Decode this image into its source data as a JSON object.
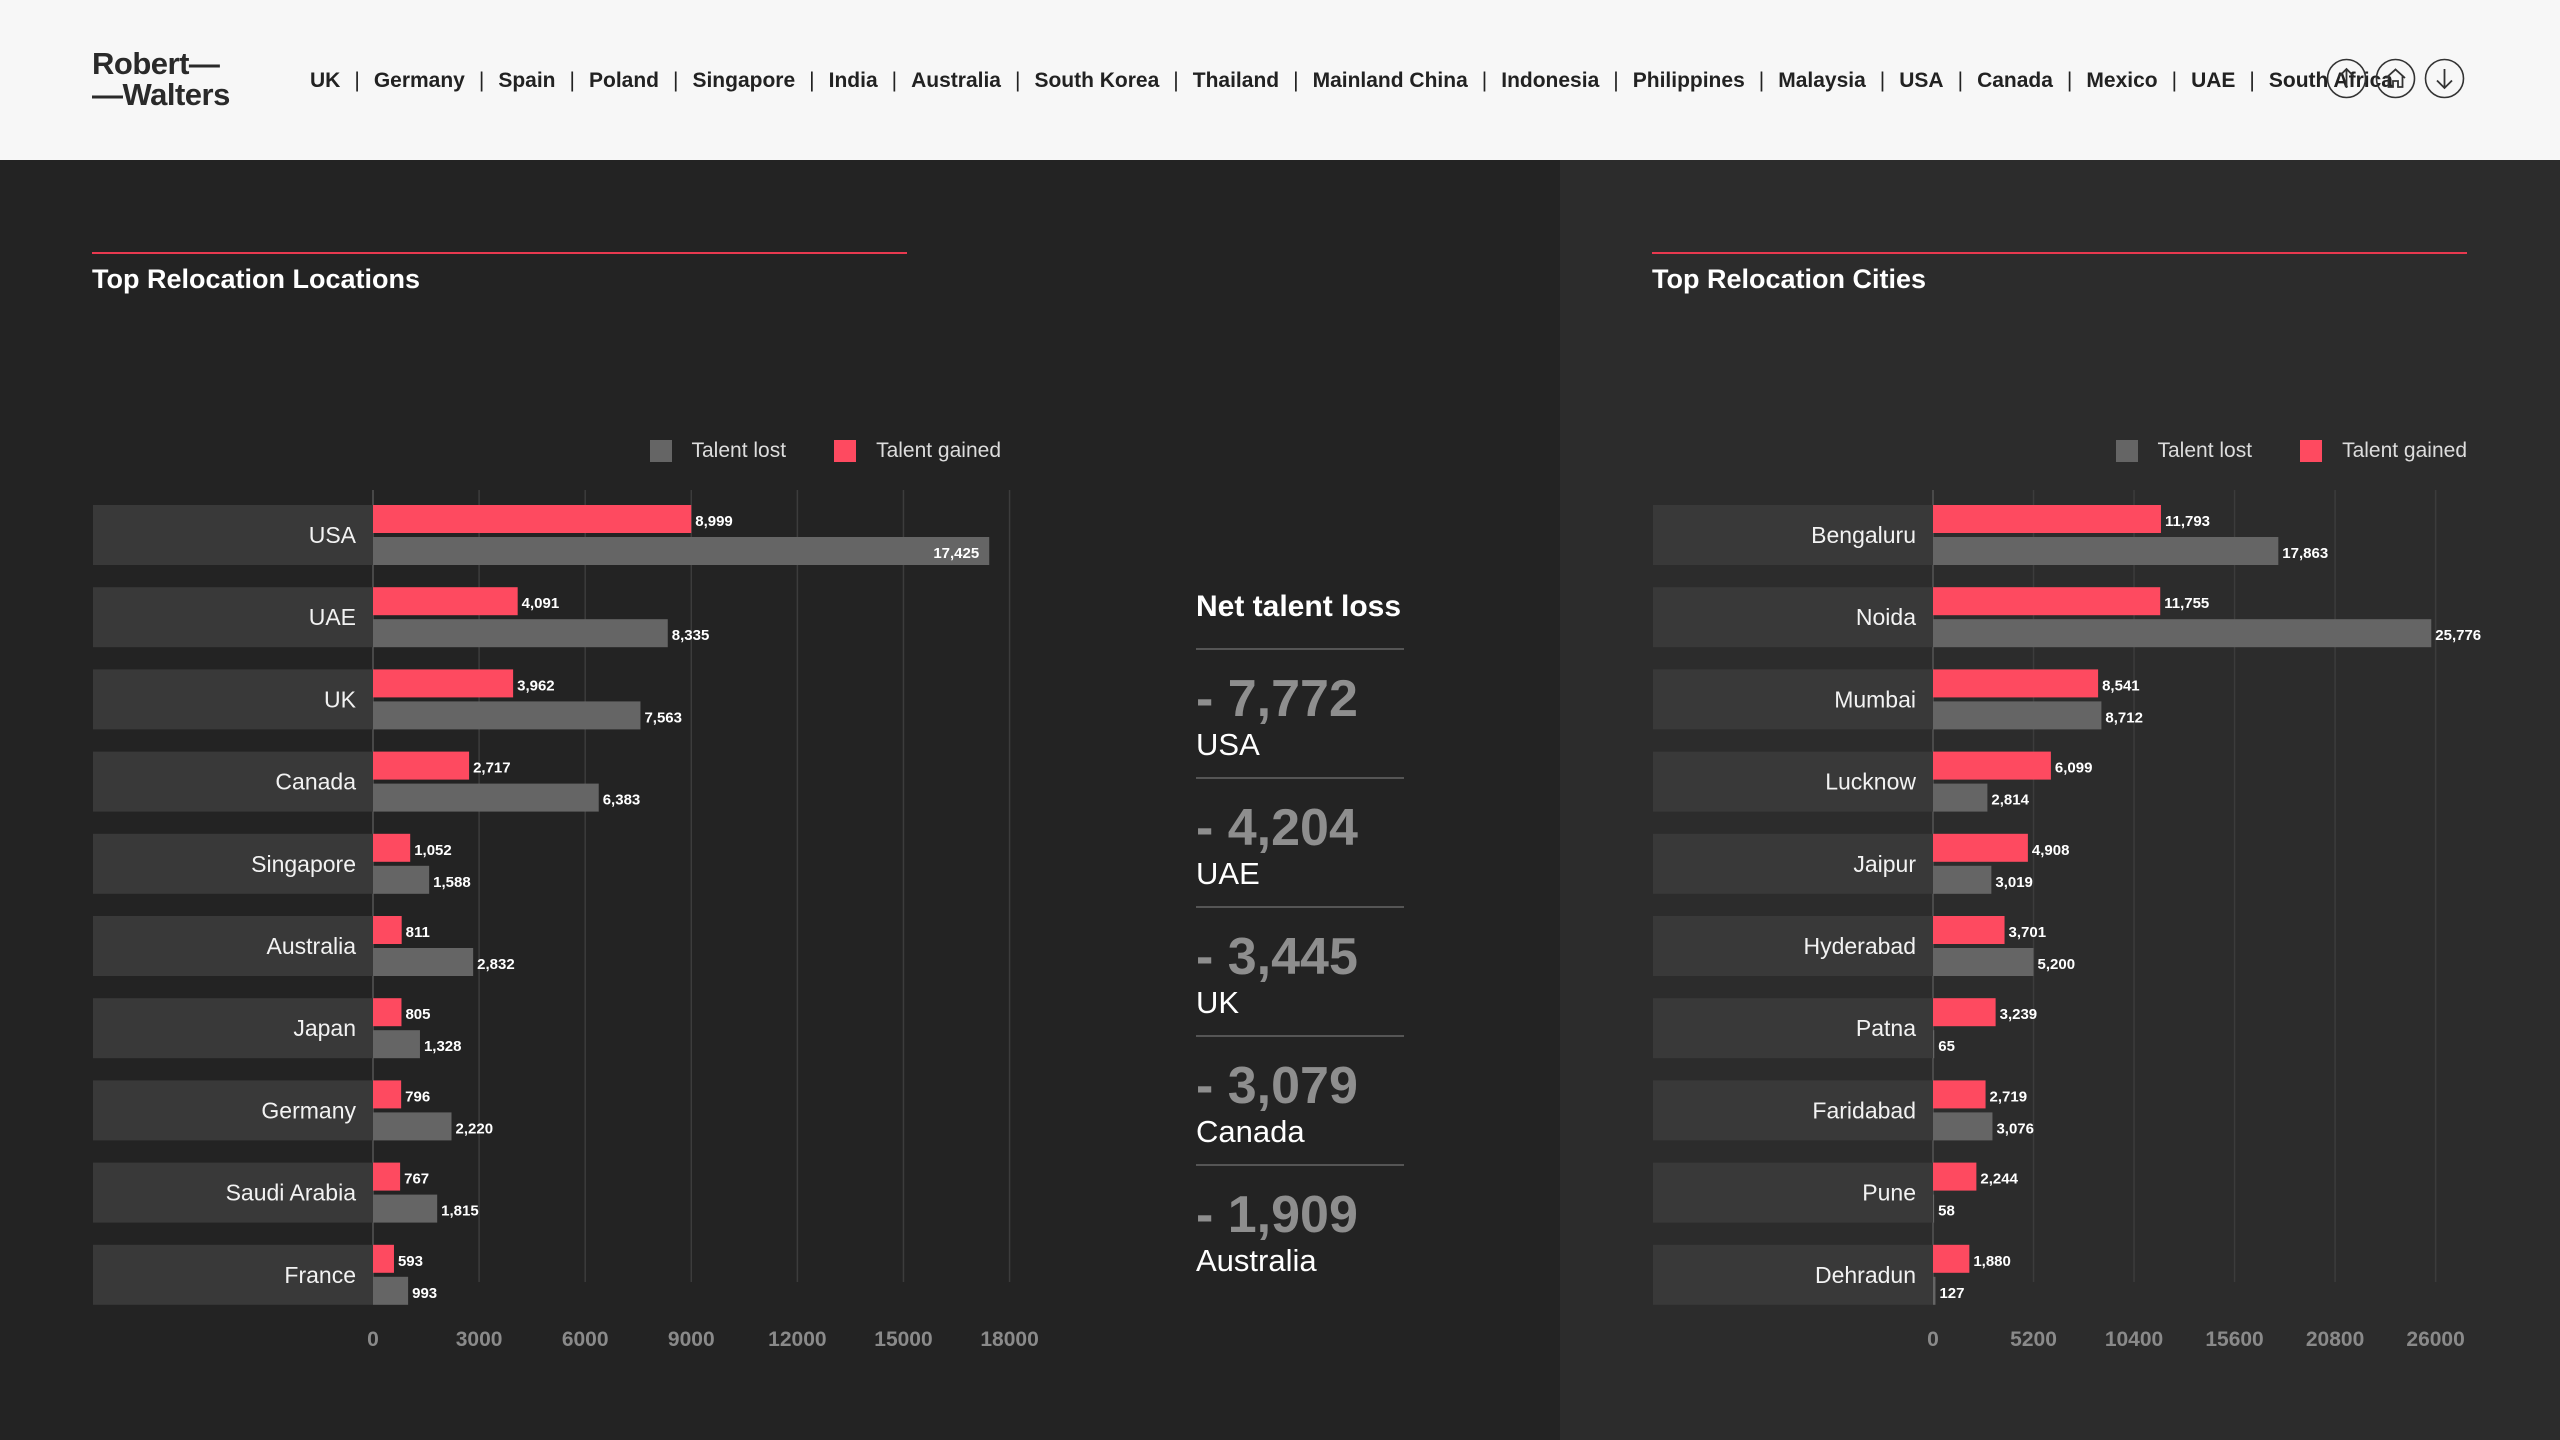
{
  "logo": {
    "line1": "Robert—",
    "line2": "—Walters"
  },
  "nav": [
    "UK",
    "Germany",
    "Spain",
    "Poland",
    "Singapore",
    "India",
    "Australia",
    "South Korea",
    "Thailand",
    "Mainland China",
    "Indonesia",
    "Philippines",
    "Malaysia",
    "USA",
    "Canada",
    "Mexico",
    "UAE",
    "South Africa"
  ],
  "nav_icons": [
    "arrow-up-icon",
    "home-icon",
    "arrow-down-icon"
  ],
  "colors": {
    "lost": "#656565",
    "gained": "#fe4a60",
    "accent": "#e8394f"
  },
  "left_section": {
    "title": "Top Relocation Locations"
  },
  "right_section": {
    "title": "Top Relocation Cities"
  },
  "net_loss": {
    "title": "Net talent loss",
    "items": [
      {
        "value": "- 7,772",
        "country": "USA"
      },
      {
        "value": "- 4,204",
        "country": "UAE"
      },
      {
        "value": "- 3,445",
        "country": "UK"
      },
      {
        "value": "- 3,079",
        "country": "Canada"
      },
      {
        "value": "- 1,909",
        "country": "Australia"
      }
    ]
  },
  "chart_data": [
    {
      "type": "bar",
      "orientation": "horizontal",
      "title": "Top Relocation Locations",
      "categories": [
        "USA",
        "UAE",
        "UK",
        "Canada",
        "Singapore",
        "Australia",
        "Japan",
        "Germany",
        "Saudi Arabia",
        "France"
      ],
      "series": [
        {
          "name": "Talent gained",
          "values": [
            8999,
            4091,
            3962,
            2717,
            1052,
            811,
            805,
            796,
            767,
            593
          ]
        },
        {
          "name": "Talent lost",
          "values": [
            17425,
            8335,
            7563,
            6383,
            1588,
            2832,
            1328,
            2220,
            1815,
            993
          ]
        }
      ],
      "value_labels": {
        "Talent gained": [
          "8,999",
          "4,091",
          "3,962",
          "2,717",
          "1,052",
          "811",
          "805",
          "796",
          "767",
          "593"
        ],
        "Talent lost": [
          "17,425",
          "8,335",
          "7,563",
          "6,383",
          "1,588",
          "2,832",
          "1,328",
          "2,220",
          "1,815",
          "993"
        ]
      },
      "xlim": [
        0,
        19200
      ],
      "xticks": [
        0,
        3000,
        6000,
        9000,
        12000,
        15000,
        18000
      ],
      "legend": [
        "Talent lost",
        "Talent gained"
      ],
      "legend_position": "top-right",
      "grid": true
    },
    {
      "type": "bar",
      "orientation": "horizontal",
      "title": "Top Relocation Cities",
      "categories": [
        "Bengaluru",
        "Noida",
        "Mumbai",
        "Lucknow",
        "Jaipur",
        "Hyderabad",
        "Patna",
        "Faridabad",
        "Pune",
        "Dehradun"
      ],
      "series": [
        {
          "name": "Talent gained",
          "values": [
            11793,
            11755,
            8541,
            6099,
            4908,
            3701,
            3239,
            2719,
            2244,
            1880
          ]
        },
        {
          "name": "Talent lost",
          "values": [
            17863,
            25776,
            8712,
            2814,
            3019,
            5200,
            65,
            3076,
            58,
            127
          ]
        }
      ],
      "value_labels": {
        "Talent gained": [
          "11,793",
          "11,755",
          "8,541",
          "6,099",
          "4,908",
          "3,701",
          "3,239",
          "2,719",
          "2,244",
          "1,880"
        ],
        "Talent lost": [
          "17,863",
          "25,776",
          "8,712",
          "2,814",
          "3,019",
          "5,200",
          "65",
          "3,076",
          "58",
          "127"
        ]
      },
      "xlim": [
        0,
        26900
      ],
      "xticks": [
        0,
        5200,
        10400,
        15600,
        20800,
        26000
      ],
      "legend": [
        "Talent lost",
        "Talent gained"
      ],
      "legend_position": "top-right",
      "grid": true
    }
  ]
}
